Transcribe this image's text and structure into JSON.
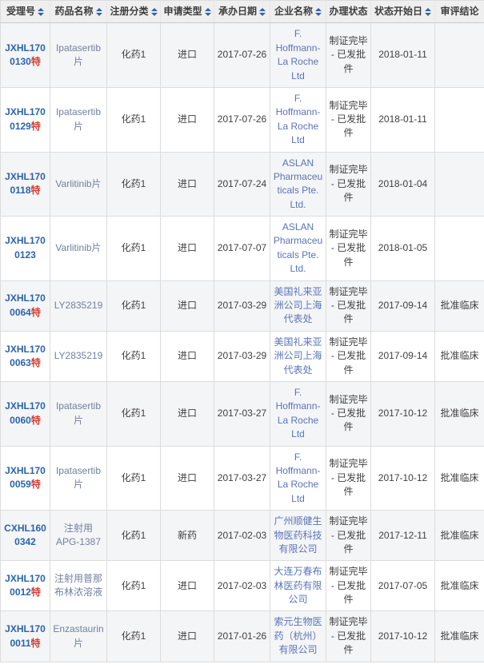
{
  "colors": {
    "header_bg": "#efefef",
    "stripe_bg": "#f4f5f6",
    "border": "#dcdcdc",
    "acceptance_no": "#2a64ad",
    "special_tag": "#d43c33",
    "drug_link": "#71819f",
    "company_link": "#5b74b8",
    "sort_icon": "#2d64a7",
    "body_text": "#404040"
  },
  "table": {
    "columns": [
      {
        "key": "acceptance_no",
        "label": "受理号",
        "sortable": true
      },
      {
        "key": "drug_name",
        "label": "药品名称",
        "sortable": true
      },
      {
        "key": "reg_category",
        "label": "注册分类",
        "sortable": true
      },
      {
        "key": "apply_type",
        "label": "申请类型",
        "sortable": true
      },
      {
        "key": "accept_date",
        "label": "承办日期",
        "sortable": true
      },
      {
        "key": "company",
        "label": "企业名称",
        "sortable": true
      },
      {
        "key": "status",
        "label": "办理状态",
        "sortable": false
      },
      {
        "key": "status_date",
        "label": "状态开始日",
        "sortable": true
      },
      {
        "key": "conclusion",
        "label": "审评结论",
        "sortable": false
      }
    ],
    "rows": [
      {
        "acceptance_no": "JXHL1700130",
        "special_tag": "特",
        "drug_name": "Ipatasertib片",
        "reg_category": "化药1",
        "apply_type": "进口",
        "accept_date": "2017-07-26",
        "company": "F. Hoffmann-La Roche Ltd",
        "status": "制证完毕 - 已发批件",
        "status_date": "2018-01-11",
        "conclusion": ""
      },
      {
        "acceptance_no": "JXHL1700129",
        "special_tag": "特",
        "drug_name": "Ipatasertib片",
        "reg_category": "化药1",
        "apply_type": "进口",
        "accept_date": "2017-07-26",
        "company": "F. Hoffmann-La Roche Ltd",
        "status": "制证完毕 - 已发批件",
        "status_date": "2018-01-11",
        "conclusion": ""
      },
      {
        "acceptance_no": "JXHL1700118",
        "special_tag": "特",
        "drug_name": "Varlitinib片",
        "reg_category": "化药1",
        "apply_type": "进口",
        "accept_date": "2017-07-24",
        "company": "ASLAN Pharmaceuticals Pte. Ltd.",
        "status": "制证完毕 - 已发批件",
        "status_date": "2018-01-04",
        "conclusion": ""
      },
      {
        "acceptance_no": "JXHL1700123",
        "special_tag": "",
        "drug_name": "Varlitinib片",
        "reg_category": "化药1",
        "apply_type": "进口",
        "accept_date": "2017-07-07",
        "company": "ASLAN Pharmaceuticals Pte. Ltd.",
        "status": "制证完毕 - 已发批件",
        "status_date": "2018-01-05",
        "conclusion": ""
      },
      {
        "acceptance_no": "JXHL1700064",
        "special_tag": "特",
        "drug_name": "LY2835219",
        "reg_category": "化药1",
        "apply_type": "进口",
        "accept_date": "2017-03-29",
        "company": "美国礼来亚洲公司上海代表处",
        "status": "制证完毕 - 已发批件",
        "status_date": "2017-09-14",
        "conclusion": "批准临床"
      },
      {
        "acceptance_no": "JXHL1700063",
        "special_tag": "特",
        "drug_name": "LY2835219",
        "reg_category": "化药1",
        "apply_type": "进口",
        "accept_date": "2017-03-29",
        "company": "美国礼来亚洲公司上海代表处",
        "status": "制证完毕 - 已发批件",
        "status_date": "2017-09-14",
        "conclusion": "批准临床"
      },
      {
        "acceptance_no": "JXHL1700060",
        "special_tag": "特",
        "drug_name": "Ipatasertib片",
        "reg_category": "化药1",
        "apply_type": "进口",
        "accept_date": "2017-03-27",
        "company": "F. Hoffmann-La Roche Ltd",
        "status": "制证完毕 - 已发批件",
        "status_date": "2017-10-12",
        "conclusion": "批准临床"
      },
      {
        "acceptance_no": "JXHL1700059",
        "special_tag": "特",
        "drug_name": "Ipatasertib片",
        "reg_category": "化药1",
        "apply_type": "进口",
        "accept_date": "2017-03-27",
        "company": "F. Hoffmann-La Roche Ltd",
        "status": "制证完毕 - 已发批件",
        "status_date": "2017-10-12",
        "conclusion": "批准临床"
      },
      {
        "acceptance_no": "CXHL1600342",
        "special_tag": "",
        "drug_name": "注射用APG-1387",
        "reg_category": "化药1",
        "apply_type": "新药",
        "accept_date": "2017-02-03",
        "company": "广州顺健生物医药科技有限公司",
        "status": "制证完毕 - 已发批件",
        "status_date": "2017-12-11",
        "conclusion": "批准临床"
      },
      {
        "acceptance_no": "JXHL1700012",
        "special_tag": "特",
        "drug_name": "注射用普那布林浓溶液",
        "reg_category": "化药1",
        "apply_type": "进口",
        "accept_date": "2017-02-03",
        "company": "大连万春布林医药有限公司",
        "status": "制证完毕 - 已发批件",
        "status_date": "2017-07-05",
        "conclusion": "批准临床"
      },
      {
        "acceptance_no": "JXHL1700011",
        "special_tag": "特",
        "drug_name": "Enzastaurin片",
        "reg_category": "化药1",
        "apply_type": "进口",
        "accept_date": "2017-01-26",
        "company": "索元生物医药（杭州）有限公司",
        "status": "制证完毕 - 已发批件",
        "status_date": "2017-10-12",
        "conclusion": "批准临床"
      }
    ]
  }
}
